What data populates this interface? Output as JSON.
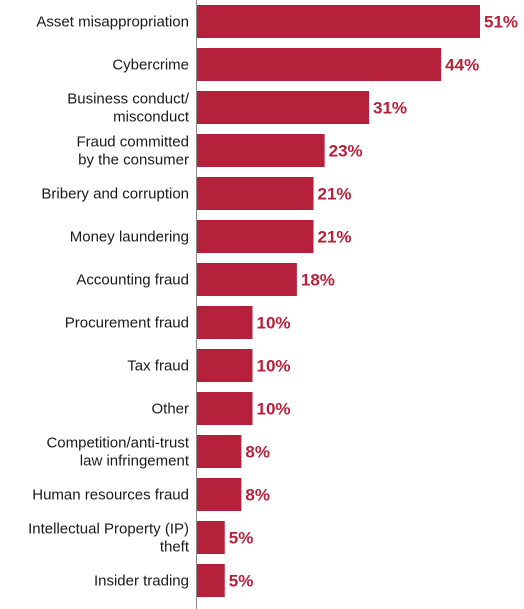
{
  "chart_data": {
    "type": "bar",
    "orientation": "horizontal",
    "title": "",
    "xlabel": "",
    "ylabel": "",
    "xlim": [
      0,
      51
    ],
    "grid": false,
    "legend": "none",
    "bar_color": "#b5213a",
    "value_color": "#b5213a",
    "categories": [
      [
        "Asset misappropriation"
      ],
      [
        "Cybercrime"
      ],
      [
        "Business conduct/",
        "misconduct"
      ],
      [
        "Fraud committed",
        "by the consumer"
      ],
      [
        "Bribery and corruption"
      ],
      [
        "Money laundering"
      ],
      [
        "Accounting fraud"
      ],
      [
        "Procurement fraud"
      ],
      [
        "Tax fraud"
      ],
      [
        "Other"
      ],
      [
        "Competition/anti-trust",
        "law infringement"
      ],
      [
        "Human resources fraud"
      ],
      [
        "Intellectual Property (IP)",
        "theft"
      ],
      [
        "Insider trading"
      ]
    ],
    "values": [
      51,
      44,
      31,
      23,
      21,
      21,
      18,
      10,
      10,
      10,
      8,
      8,
      5,
      5
    ],
    "value_labels": [
      "51%",
      "44%",
      "31%",
      "23%",
      "21%",
      "21%",
      "18%",
      "10%",
      "10%",
      "10%",
      "8%",
      "8%",
      "5%",
      "5%"
    ]
  }
}
